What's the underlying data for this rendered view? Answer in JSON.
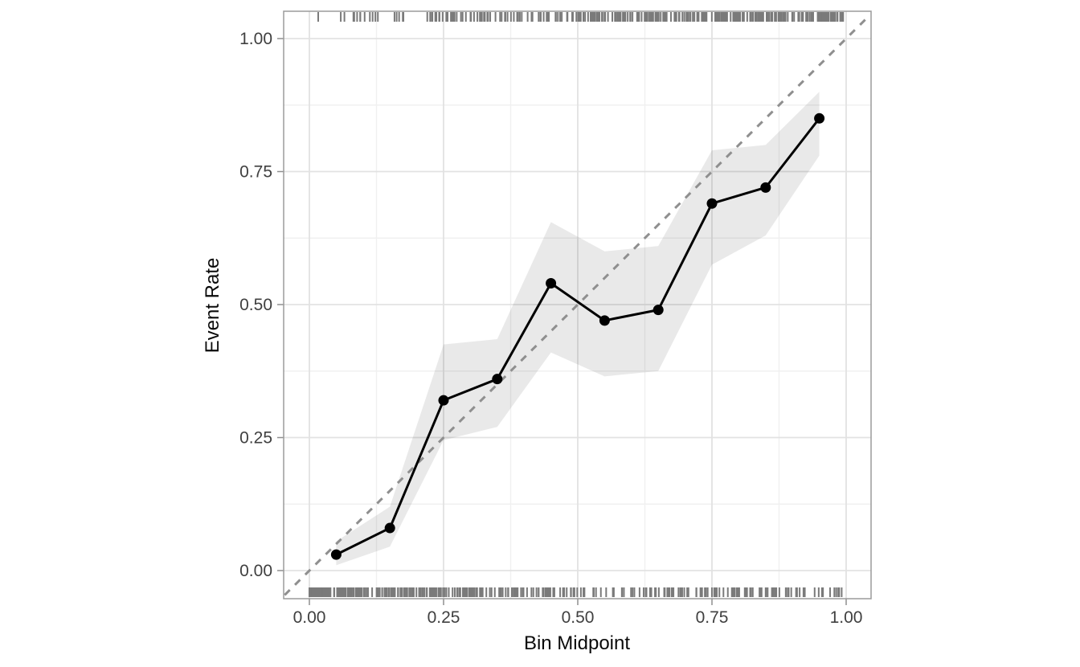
{
  "chart_data": {
    "type": "line",
    "title": "",
    "xlabel": "Bin Midpoint",
    "ylabel": "Event Rate",
    "xlim": [
      -0.05,
      1.05
    ],
    "ylim": [
      -0.05,
      1.05
    ],
    "grid": "on",
    "legend": "none",
    "x_ticks": {
      "values": [
        0.0,
        0.25,
        0.5,
        0.75,
        1.0
      ],
      "labels": [
        "0.00",
        "0.25",
        "0.50",
        "0.75",
        "1.00"
      ]
    },
    "y_ticks": {
      "values": [
        0.0,
        0.25,
        0.5,
        0.75,
        1.0
      ],
      "labels": [
        "0.00",
        "0.25",
        "0.50",
        "0.75",
        "1.00"
      ]
    },
    "minor_ticks": [
      0.125,
      0.375,
      0.625,
      0.875
    ],
    "x": [
      0.05,
      0.15,
      0.25,
      0.35,
      0.45,
      0.55,
      0.65,
      0.75,
      0.85,
      0.95
    ],
    "series": [
      {
        "name": "observed-event-rate",
        "values": [
          0.03,
          0.08,
          0.32,
          0.36,
          0.54,
          0.47,
          0.49,
          0.69,
          0.72,
          0.85
        ]
      }
    ],
    "ribbon": {
      "name": "confidence-band",
      "lower": [
        0.01,
        0.045,
        0.245,
        0.27,
        0.41,
        0.365,
        0.375,
        0.575,
        0.63,
        0.78
      ],
      "upper": [
        0.055,
        0.12,
        0.425,
        0.435,
        0.655,
        0.6,
        0.61,
        0.79,
        0.8,
        0.9
      ]
    },
    "reference_line": {
      "name": "perfect-calibration",
      "from": [
        0,
        0
      ],
      "to": [
        1,
        1
      ],
      "style": "dashed"
    },
    "rug": {
      "seed": 123456789,
      "top": {
        "count": 330,
        "distribution_power": 0.5,
        "range": [
          0,
          1
        ]
      },
      "bottom": {
        "count": 430,
        "distribution_power": 2.1,
        "range": [
          0,
          1
        ]
      }
    }
  },
  "colors": {
    "background": "#ffffff",
    "panel_border": "#9b9b9b",
    "grid_major": "#e2e2e2",
    "grid_minor": "#f0f0f0",
    "series_line": "#000000",
    "point": "#000000",
    "ribbon_fill": "rgba(0,0,0,0.085)",
    "reference_dash": "#8f8f8f",
    "rug": "#7a7a7a",
    "tick_mark": "#8f8f8f",
    "tick_label": "#404040",
    "axis_title": "#0a0a0a"
  }
}
